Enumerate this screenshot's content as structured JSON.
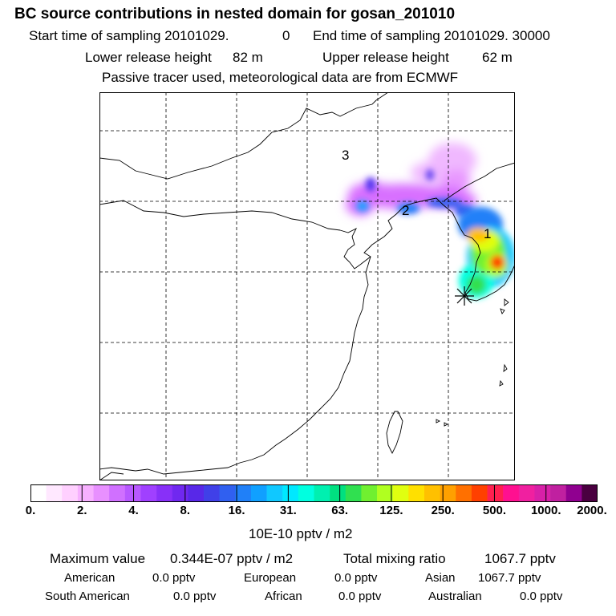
{
  "header": {
    "title": "BC  source contributions in nested domain for gosan_201010",
    "start_label": "Start time of sampling 20101029.",
    "start_value": "0",
    "end_label": "End time of sampling 20101029. 30000",
    "lower_label": "Lower release height",
    "lower_value": "82 m",
    "upper_label": "Upper release height",
    "upper_value": "62 m",
    "tracer_note": "Passive tracer used, meteorological data are from ECMWF"
  },
  "map": {
    "labels": [
      "3",
      "2",
      "1"
    ],
    "receptor_marker": "star-icon"
  },
  "colorbar": {
    "tick_labels": [
      "0.",
      "2.",
      "4.",
      "8.",
      "16.",
      "31.",
      "63.",
      "125.",
      "250.",
      "500.",
      "1000.",
      "2000."
    ],
    "units": "10E-10 pptv / m2",
    "colors": [
      "#ffffff",
      "#ffe8ff",
      "#ffd0ff",
      "#f7b0ff",
      "#e890ff",
      "#d070ff",
      "#b858ff",
      "#a040ff",
      "#8830f8",
      "#7028f0",
      "#5828e8",
      "#4040e8",
      "#3060f0",
      "#2080f8",
      "#10a0ff",
      "#10c8ff",
      "#00e8ff",
      "#00ffe0",
      "#00f0b0",
      "#00e080",
      "#30e050",
      "#70f030",
      "#b0ff20",
      "#e0ff10",
      "#ffe000",
      "#ffc000",
      "#ffa000",
      "#ff7000",
      "#ff4000",
      "#ff2050",
      "#ff1090",
      "#f020a0",
      "#d820a8",
      "#c020a0",
      "#900090",
      "#4a0040"
    ]
  },
  "stats": {
    "max_label": "Maximum value",
    "max_value": "0.344E-07 pptv / m2",
    "total_label": "Total mixing ratio",
    "total_value": "1067.7 pptv",
    "regions": [
      {
        "name": "American",
        "value": "0.0 pptv"
      },
      {
        "name": "European",
        "value": "0.0 pptv"
      },
      {
        "name": "Asian",
        "value": "1067.7 pptv"
      },
      {
        "name": "South American",
        "value": "0.0 pptv"
      },
      {
        "name": "African",
        "value": "0.0 pptv"
      },
      {
        "name": "Australian",
        "value": "0.0 pptv"
      }
    ]
  }
}
